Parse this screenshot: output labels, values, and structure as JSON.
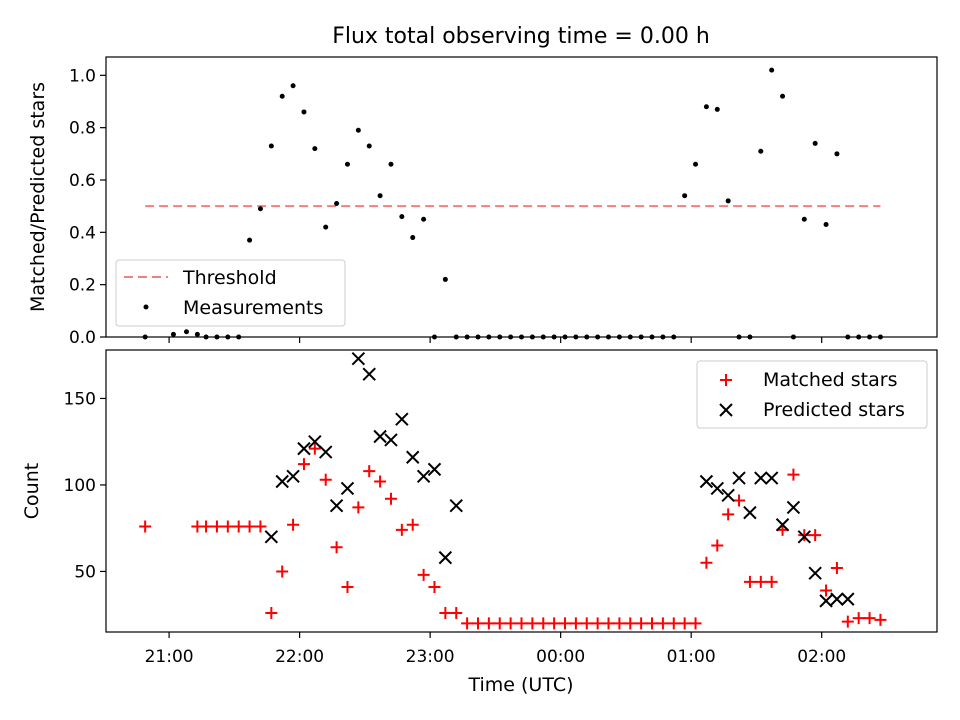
{
  "chart_data": [
    {
      "type": "scatter",
      "title": "Flux total observing time = 0.00 h",
      "xlabel": "",
      "ylabel": "Matched/Predicted stars",
      "xlim": [
        "20:31",
        "02:53"
      ],
      "ylim": [
        0,
        1.07
      ],
      "yticks": [
        "0.0",
        "0.2",
        "0.4",
        "0.6",
        "0.8",
        "1.0"
      ],
      "x_tick_positions": [
        "21:00",
        "22:00",
        "23:00",
        "00:00",
        "01:00",
        "02:00"
      ],
      "legend_position": "lower-left",
      "threshold": {
        "name": "Threshold",
        "value": 0.5,
        "x_range": [
          "20:49",
          "02:27"
        ],
        "color": "#f08080"
      },
      "series": [
        {
          "name": "Measurements",
          "color": "#000000",
          "x": [
            "20:49",
            "21:02",
            "21:08",
            "21:13",
            "21:17",
            "21:22",
            "21:27",
            "21:32",
            "21:37",
            "21:42",
            "21:47",
            "21:52",
            "21:57",
            "22:02",
            "22:07",
            "22:12",
            "22:17",
            "22:22",
            "22:27",
            "22:32",
            "22:37",
            "22:42",
            "22:47",
            "22:52",
            "22:57",
            "23:02",
            "23:07",
            "23:12",
            "23:17",
            "23:22",
            "23:27",
            "23:32",
            "23:37",
            "23:42",
            "23:47",
            "23:52",
            "23:57",
            "00:02",
            "00:07",
            "00:12",
            "00:17",
            "00:22",
            "00:27",
            "00:32",
            "00:37",
            "00:42",
            "00:47",
            "00:52",
            "00:57",
            "01:02",
            "01:07",
            "01:12",
            "01:17",
            "01:22",
            "01:27",
            "01:32",
            "01:37",
            "01:42",
            "01:47",
            "01:52",
            "01:57",
            "02:02",
            "02:07",
            "02:12",
            "02:17",
            "02:22",
            "02:27"
          ],
          "y": [
            0,
            0.01,
            0.02,
            0.01,
            0,
            0,
            0,
            0,
            0.37,
            0.49,
            0.73,
            0.92,
            0.96,
            0.86,
            0.72,
            0.42,
            0.51,
            0.66,
            0.79,
            0.73,
            0.54,
            0.66,
            0.46,
            0.38,
            0.45,
            0,
            0.22,
            0,
            0,
            0,
            0,
            0,
            0,
            0,
            0,
            0,
            0,
            0,
            0,
            0,
            0,
            0,
            0,
            0,
            0,
            0,
            0,
            0,
            0.54,
            0.66,
            0.88,
            0.87,
            0.52,
            0,
            0,
            0.71,
            1.02,
            0.92,
            0,
            0.45,
            0.74,
            0.43,
            0.7,
            0,
            0,
            0,
            0
          ]
        }
      ]
    },
    {
      "type": "scatter",
      "title": "",
      "xlabel": "Time (UTC)",
      "ylabel": "Count",
      "xlim": [
        "20:31",
        "02:53"
      ],
      "ylim": [
        15,
        178
      ],
      "yticks": [
        "50",
        "100",
        "150"
      ],
      "xticks": [
        "21:00",
        "22:00",
        "23:00",
        "00:00",
        "01:00",
        "02:00"
      ],
      "legend_position": "upper-right",
      "series": [
        {
          "name": "Matched stars",
          "color": "#ff0000",
          "marker": "plus",
          "x": [
            "20:49",
            "21:13",
            "21:17",
            "21:22",
            "21:27",
            "21:32",
            "21:37",
            "21:42",
            "21:47",
            "21:52",
            "21:57",
            "22:02",
            "22:07",
            "22:12",
            "22:17",
            "22:22",
            "22:27",
            "22:32",
            "22:37",
            "22:42",
            "22:47",
            "22:52",
            "22:57",
            "23:02",
            "23:07",
            "23:12",
            "23:17",
            "23:22",
            "23:27",
            "23:32",
            "23:37",
            "23:42",
            "23:47",
            "23:52",
            "23:57",
            "00:02",
            "00:07",
            "00:12",
            "00:17",
            "00:22",
            "00:27",
            "00:32",
            "00:37",
            "00:42",
            "00:47",
            "00:52",
            "00:57",
            "01:02",
            "01:07",
            "01:12",
            "01:17",
            "01:22",
            "01:27",
            "01:32",
            "01:37",
            "01:42",
            "01:47",
            "01:52",
            "01:57",
            "02:02",
            "02:07",
            "02:12",
            "02:17",
            "02:22",
            "02:27"
          ],
          "y": [
            76,
            76,
            76,
            76,
            76,
            76,
            76,
            76,
            26,
            50,
            77,
            112,
            121,
            103,
            64,
            41,
            87,
            108,
            102,
            92,
            74,
            77,
            48,
            41,
            26,
            26,
            20,
            20,
            20,
            20,
            20,
            20,
            20,
            20,
            20,
            20,
            20,
            20,
            20,
            20,
            20,
            20,
            20,
            20,
            20,
            20,
            20,
            20,
            55,
            65,
            83,
            91,
            44,
            44,
            44,
            74,
            106,
            71,
            71,
            39,
            52,
            21,
            23,
            23,
            22
          ]
        },
        {
          "name": "Predicted stars",
          "color": "#000000",
          "marker": "x",
          "x": [
            "21:47",
            "21:52",
            "21:57",
            "22:02",
            "22:07",
            "22:12",
            "22:17",
            "22:22",
            "22:27",
            "22:32",
            "22:37",
            "22:42",
            "22:47",
            "22:52",
            "22:57",
            "23:02",
            "23:07",
            "23:12",
            "01:07",
            "01:12",
            "01:17",
            "01:22",
            "01:27",
            "01:32",
            "01:37",
            "01:42",
            "01:47",
            "01:52",
            "01:57",
            "02:02",
            "02:07",
            "02:12"
          ],
          "y": [
            70,
            102,
            105,
            121,
            125,
            119,
            88,
            98,
            173,
            164,
            128,
            126,
            138,
            116,
            105,
            109,
            58,
            88,
            102,
            98,
            94,
            104,
            84,
            104,
            104,
            77,
            87,
            70,
            49,
            33,
            34,
            34
          ]
        }
      ]
    }
  ]
}
